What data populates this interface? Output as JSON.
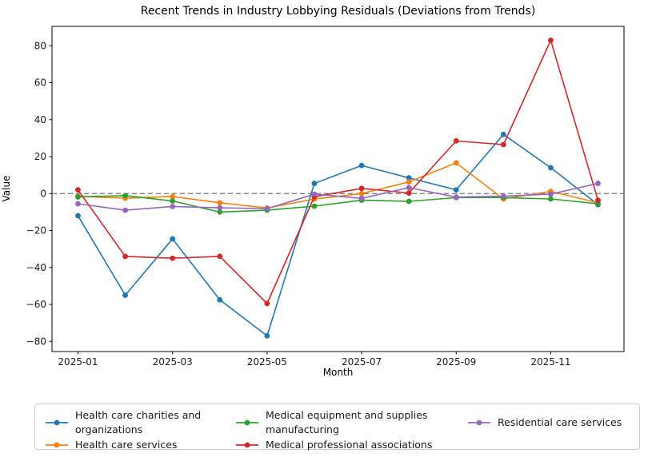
{
  "figure": {
    "title": "Recent Trends in Industry Lobbying Residuals (Deviations from Trends)",
    "xlabel": "Month",
    "ylabel": "Value"
  },
  "chart_data": {
    "type": "line",
    "title": "Recent Trends in Industry Lobbying Residuals (Deviations from Trends)",
    "xlabel": "Month",
    "ylabel": "Value",
    "x": [
      "2025-01",
      "2025-02",
      "2025-03",
      "2025-04",
      "2025-05",
      "2025-06",
      "2025-07",
      "2025-08",
      "2025-09",
      "2025-10",
      "2025-11",
      "2025-12"
    ],
    "x_tick_labels": [
      "2025-01",
      "2025-03",
      "2025-05",
      "2025-07",
      "2025-09",
      "2025-11"
    ],
    "y_ticks": [
      -80,
      -60,
      -40,
      -20,
      0,
      20,
      40,
      60,
      80
    ],
    "ylim": [
      -85.5,
      90.5
    ],
    "grid": false,
    "legend_position": "below-figure, 3 columns",
    "zero_line": {
      "y": 0,
      "style": "dashed",
      "color": "#808080"
    },
    "series": [
      {
        "name": "Health care charities and organizations",
        "color": "#1f77b4",
        "values": [
          -12,
          -55,
          -24.5,
          -57.5,
          -77,
          5.5,
          15.2,
          8.5,
          2,
          32,
          14,
          -6
        ]
      },
      {
        "name": "Health care services",
        "color": "#ff7f0e",
        "values": [
          -1.5,
          -2.5,
          -1.6,
          -5,
          -7.8,
          -3,
          0,
          6.3,
          16.6,
          -2.9,
          1.2,
          -5
        ]
      },
      {
        "name": "Medical equipment and supplies manufacturing",
        "color": "#2ca02c",
        "values": [
          -1.8,
          -1.1,
          -4,
          -10,
          -9,
          -6.8,
          -3.6,
          -4.2,
          -2.2,
          -2.2,
          -2.9,
          -5.5
        ]
      },
      {
        "name": "Medical professional associations",
        "color": "#d62728",
        "values": [
          2,
          -34,
          -35,
          -34,
          -59.5,
          -1.7,
          2.8,
          0.3,
          28.5,
          26.5,
          83,
          -3.6
        ]
      },
      {
        "name": "Residential care services",
        "color": "#9467bd",
        "values": [
          -5.5,
          -9,
          -7,
          -7.7,
          -8.2,
          -0.3,
          -2.6,
          3.2,
          -1.9,
          -1.4,
          -0.3,
          5.5
        ]
      }
    ]
  },
  "legend": {
    "items": [
      {
        "lines": [
          "Health care charities and",
          "organizations"
        ],
        "color": "#1f77b4"
      },
      {
        "lines": [
          "Health care services"
        ],
        "color": "#ff7f0e"
      },
      {
        "lines": [
          "Medical equipment and supplies",
          "manufacturing"
        ],
        "color": "#2ca02c"
      },
      {
        "lines": [
          "Medical professional associations"
        ],
        "color": "#d62728"
      },
      {
        "lines": [
          "Residential care services"
        ],
        "color": "#9467bd"
      }
    ]
  }
}
